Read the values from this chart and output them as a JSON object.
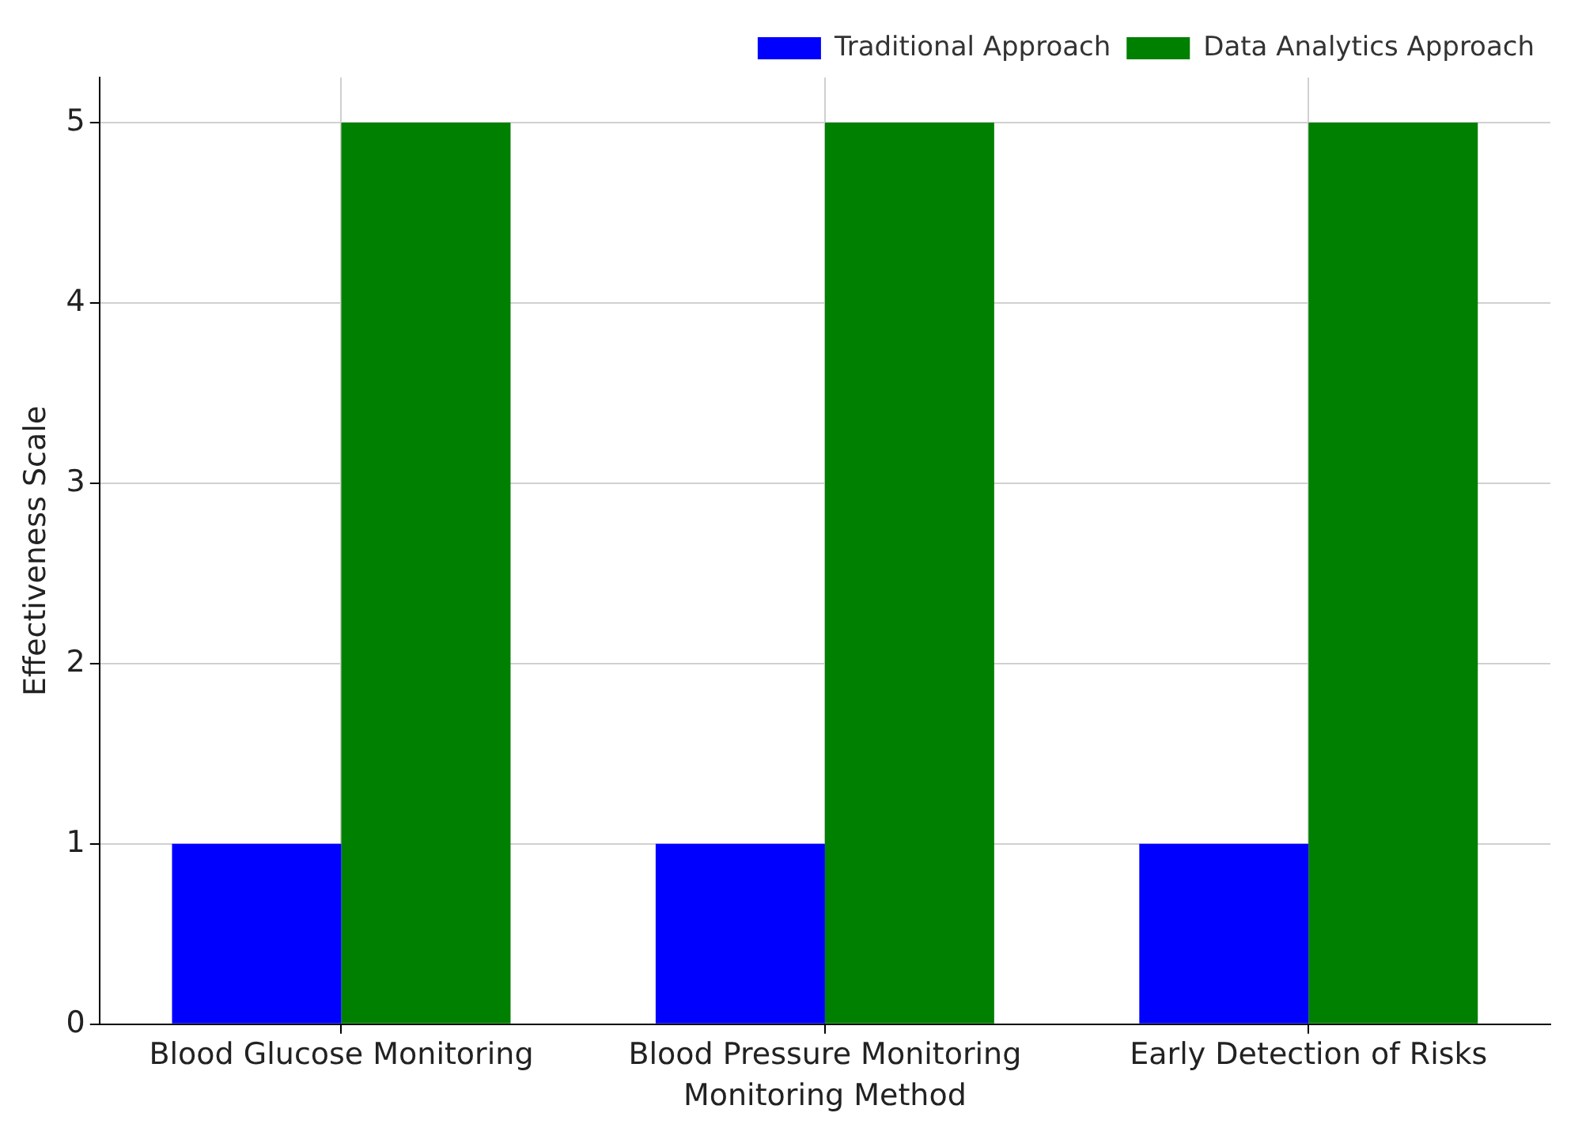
{
  "chart_data": {
    "type": "bar",
    "xlabel": "Monitoring Method",
    "ylabel": "Effectiveness Scale",
    "categories": [
      "Blood Glucose Monitoring",
      "Blood Pressure Monitoring",
      "Early Detection of Risks"
    ],
    "series": [
      {
        "name": "Traditional Approach",
        "color": "#0000ff",
        "values": [
          1,
          1,
          1
        ]
      },
      {
        "name": "Data Analytics Approach",
        "color": "#008000",
        "values": [
          5,
          5,
          5
        ]
      }
    ],
    "ylim": [
      0,
      5.25
    ],
    "yticks": [
      0,
      1,
      2,
      3,
      4,
      5
    ],
    "grid": true,
    "legend": "top right"
  }
}
